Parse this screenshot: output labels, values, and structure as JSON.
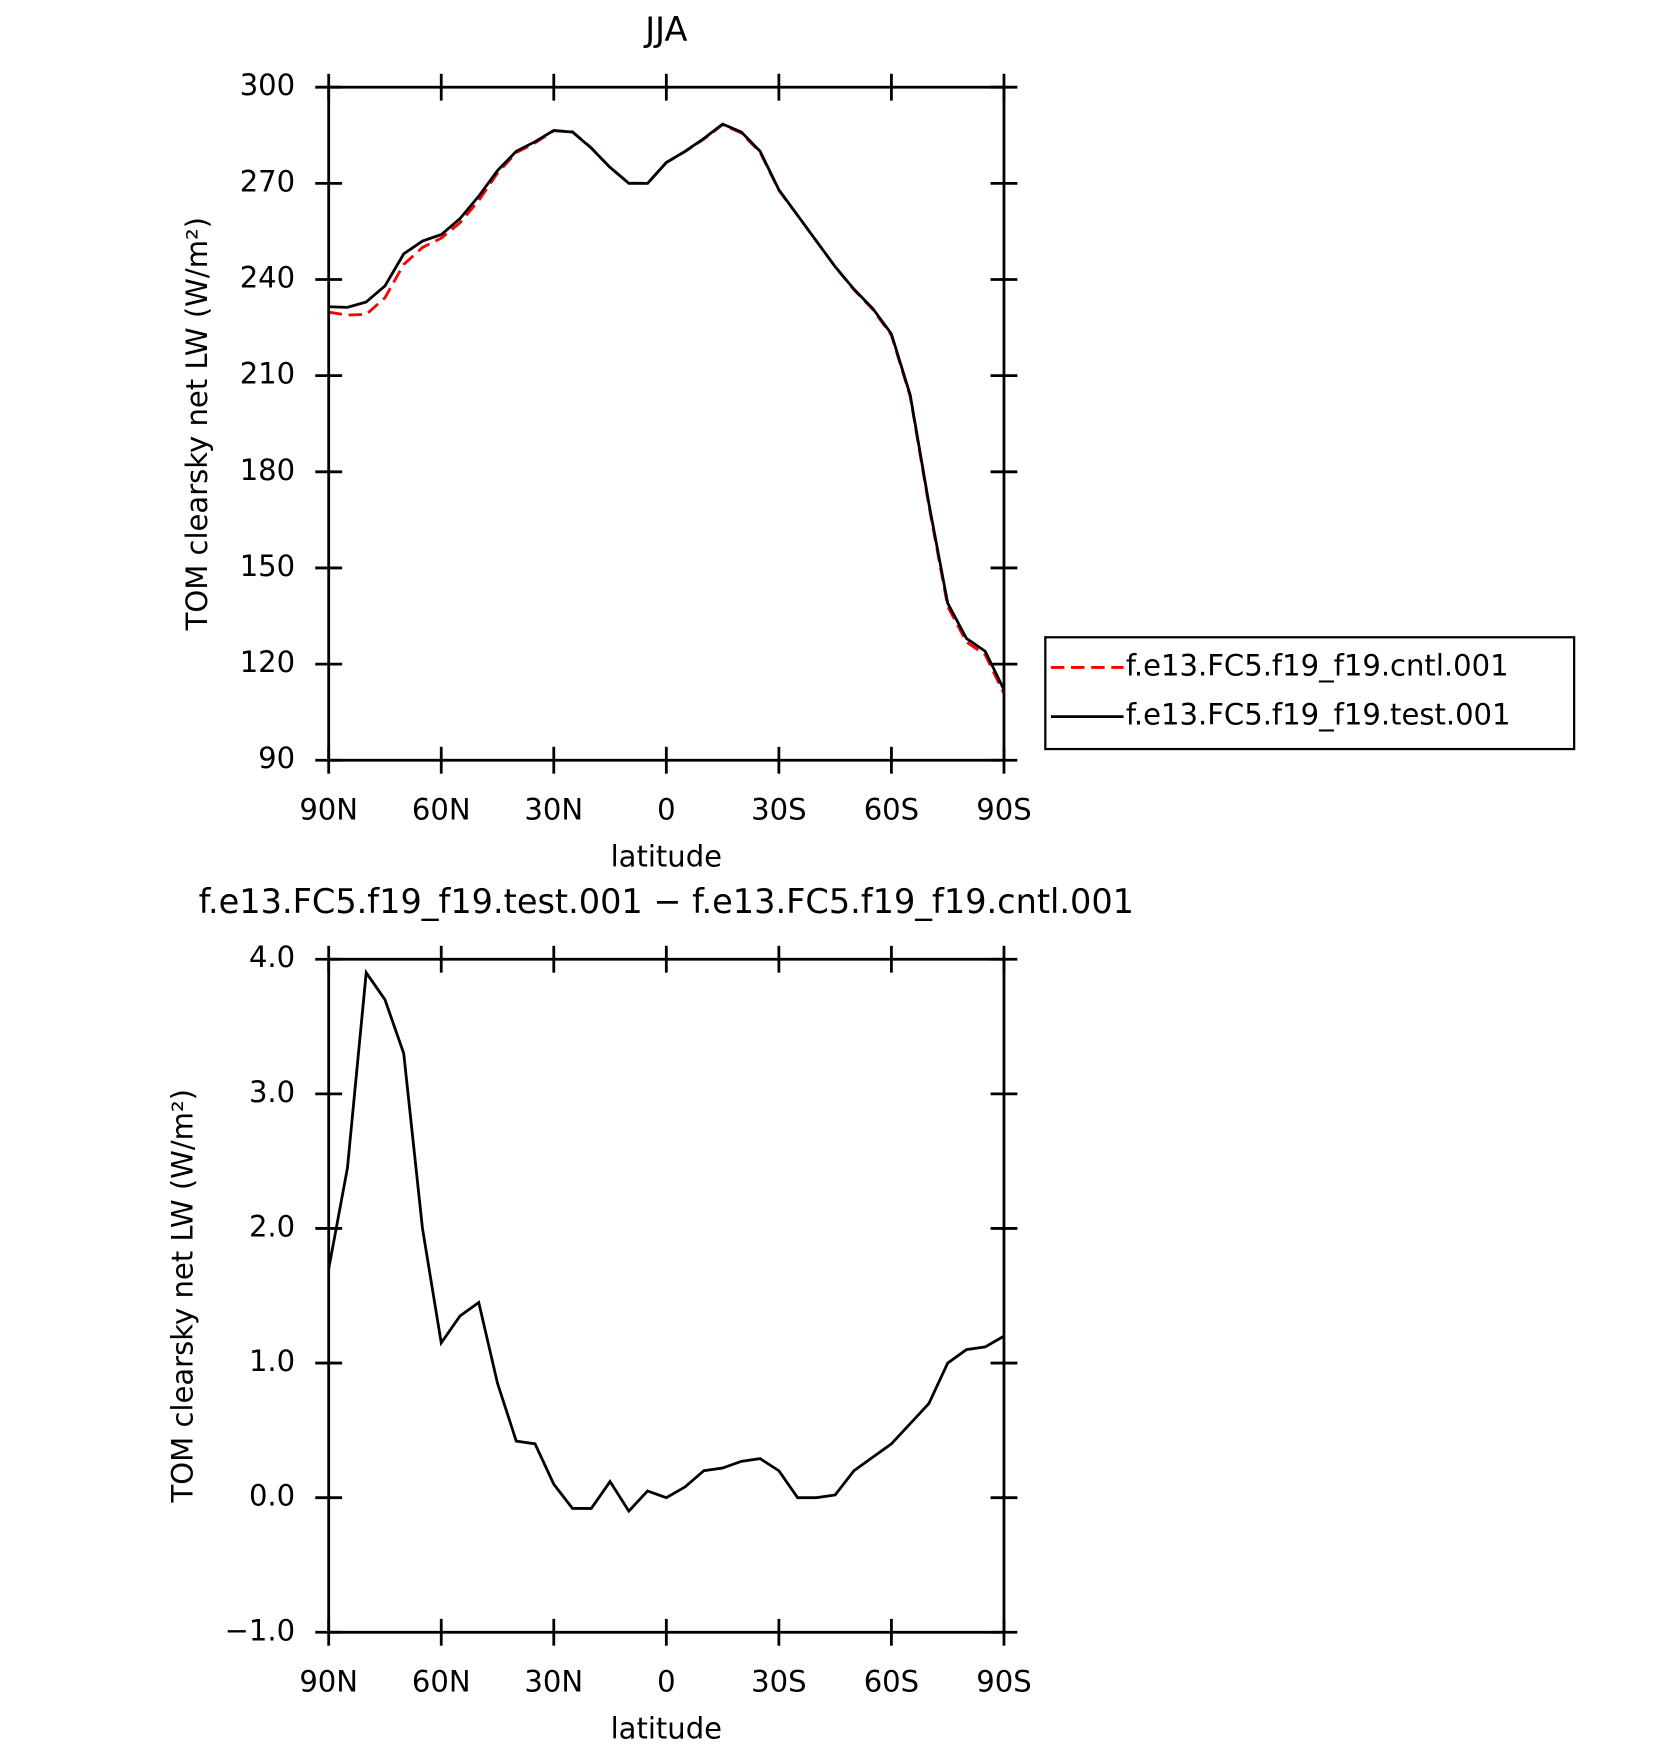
{
  "chart_data": [
    {
      "type": "line",
      "title": "JJA",
      "x_label": "latitude",
      "y_label": "TOM clearsky net LW (W/m²)",
      "x": [
        90,
        85,
        80,
        75,
        70,
        65,
        60,
        55,
        50,
        45,
        40,
        35,
        30,
        25,
        20,
        15,
        10,
        5,
        0,
        -5,
        -10,
        -15,
        -20,
        -25,
        -30,
        -35,
        -40,
        -45,
        -50,
        -55,
        -60,
        -65,
        -70,
        -75,
        -80,
        -85,
        -90
      ],
      "xlim": [
        90,
        -90
      ],
      "xticks": [
        {
          "value": 90,
          "label": "90N"
        },
        {
          "value": 60,
          "label": "60N"
        },
        {
          "value": 30,
          "label": "30N"
        },
        0,
        {
          "value": -30,
          "label": "30S"
        },
        {
          "value": -60,
          "label": "60S"
        },
        {
          "value": -90,
          "label": "90S"
        }
      ],
      "ylim": [
        90,
        300
      ],
      "yticks": [
        90,
        120,
        150,
        180,
        210,
        240,
        270,
        300
      ],
      "series": [
        {
          "name": "f.e13.FC5.f19_f19.cntl.001",
          "color": "#ff0000",
          "dash": true,
          "values": [
            229.8,
            228.9,
            229.1,
            234.3,
            244.7,
            250,
            252.9,
            257.7,
            264.6,
            273.2,
            279.6,
            282.6,
            286.4,
            286.1,
            281.1,
            274.9,
            270.1,
            270,
            276.5,
            279.9,
            283.8,
            288.3,
            285.7,
            279.7,
            267.8,
            260,
            252,
            244,
            236.8,
            230.7,
            222.6,
            203.5,
            169.3,
            138,
            126.9,
            122.9,
            110.8
          ]
        },
        {
          "name": "f.e13.FC5.f19_f19.test.001",
          "color": "#000000",
          "dash": false,
          "values": [
            231.5,
            231.3,
            233,
            238,
            248,
            252,
            254,
            259,
            266,
            274,
            280,
            283,
            286.5,
            286,
            281,
            275,
            270,
            270,
            276.5,
            280,
            284,
            288.5,
            286,
            280,
            268,
            260,
            252,
            244,
            237,
            231,
            223,
            204,
            170,
            139,
            128,
            124,
            112
          ]
        }
      ]
    },
    {
      "type": "line",
      "title": "f.e13.FC5.f19_f19.test.001 − f.e13.FC5.f19_f19.cntl.001",
      "x_label": "latitude",
      "y_label": "TOM clearsky net LW (W/m²)",
      "x": [
        90,
        85,
        80,
        75,
        70,
        65,
        60,
        55,
        50,
        45,
        40,
        35,
        30,
        25,
        20,
        15,
        10,
        5,
        0,
        -5,
        -10,
        -15,
        -20,
        -25,
        -30,
        -35,
        -40,
        -45,
        -50,
        -55,
        -60,
        -65,
        -70,
        -75,
        -80,
        -85,
        -90
      ],
      "xlim": [
        90,
        -90
      ],
      "xticks": [
        {
          "value": 90,
          "label": "90N"
        },
        {
          "value": 60,
          "label": "60N"
        },
        {
          "value": 30,
          "label": "30N"
        },
        0,
        {
          "value": -30,
          "label": "30S"
        },
        {
          "value": -60,
          "label": "60S"
        },
        {
          "value": -90,
          "label": "90S"
        }
      ],
      "ylim": [
        -1,
        4
      ],
      "yticks": [
        {
          "value": -1,
          "label": "−1.0"
        },
        {
          "value": 0,
          "label": "0.0"
        },
        {
          "value": 1,
          "label": "1.0"
        },
        {
          "value": 2,
          "label": "2.0"
        },
        {
          "value": 3,
          "label": "3.0"
        },
        {
          "value": 4,
          "label": "4.0"
        }
      ],
      "color": "#000000",
      "values": [
        1.7,
        2.45,
        3.9,
        3.7,
        3.3,
        2.0,
        1.15,
        1.35,
        1.45,
        0.85,
        0.42,
        0.4,
        0.1,
        -0.08,
        -0.08,
        0.12,
        -0.1,
        0.05,
        0.0,
        0.08,
        0.2,
        0.22,
        0.27,
        0.29,
        0.2,
        0.0,
        0.0,
        0.02,
        0.2,
        0.3,
        0.4,
        0.55,
        0.7,
        1.0,
        1.1,
        1.12,
        1.2
      ]
    }
  ]
}
